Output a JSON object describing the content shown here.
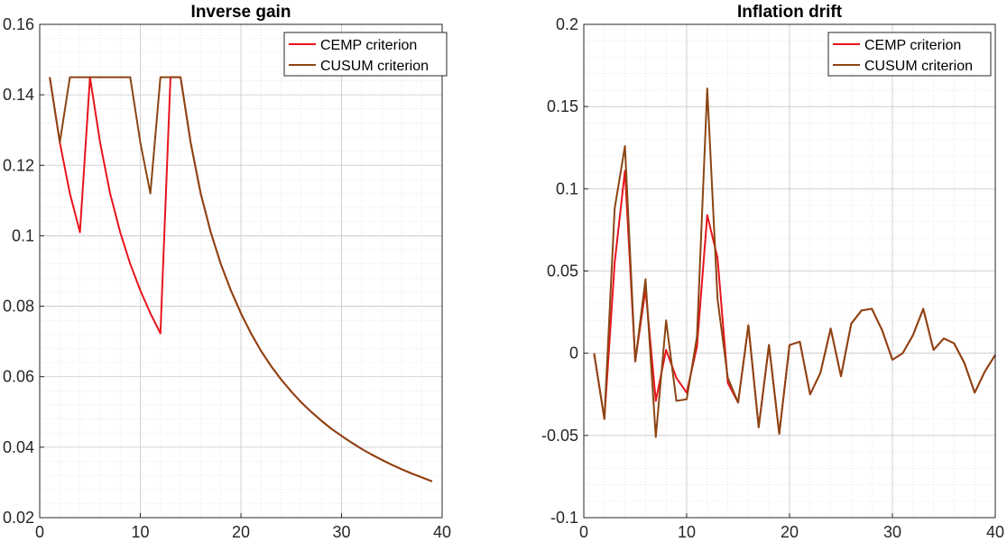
{
  "chart_data": [
    {
      "type": "line",
      "title": "Inverse gain",
      "xlabel": "",
      "ylabel": "",
      "xlim": [
        0,
        40
      ],
      "ylim": [
        0.02,
        0.16
      ],
      "xticks": [
        0,
        10,
        20,
        30,
        40
      ],
      "yticks": [
        0.02,
        0.04,
        0.06,
        0.08,
        0.1,
        0.12,
        0.14,
        0.16
      ],
      "xtick_labels": [
        "0",
        "10",
        "20",
        "30",
        "40"
      ],
      "ytick_labels": [
        "0.02",
        "0.04",
        "0.06",
        "0.08",
        "0.1",
        "0.12",
        "0.14",
        "0.16"
      ],
      "grid": true,
      "minor_grid": true,
      "legend_position": "top-right",
      "series": [
        {
          "name": "CEMP criterion",
          "color": "#e8141c",
          "x": [
            1,
            2,
            3,
            4,
            5,
            6,
            7,
            8,
            9,
            10,
            11,
            12,
            13,
            14,
            15,
            16,
            17,
            18,
            19,
            20,
            21,
            22,
            23,
            24,
            25,
            26,
            27,
            28,
            29,
            30,
            31,
            32,
            33,
            34,
            35,
            36,
            37,
            38,
            39
          ],
          "values": [
            0.145,
            0.1265,
            0.112,
            0.101,
            0.145,
            0.1265,
            0.112,
            0.101,
            0.092,
            0.0845,
            0.078,
            0.0723,
            0.145,
            0.145,
            0.1265,
            0.112,
            0.101,
            0.092,
            0.0845,
            0.078,
            0.0723,
            0.0673,
            0.063,
            0.0592,
            0.0558,
            0.0527,
            0.05,
            0.0475,
            0.0452,
            0.0432,
            0.0413,
            0.0395,
            0.0379,
            0.0364,
            0.035,
            0.0337,
            0.0325,
            0.0314,
            0.0303
          ]
        },
        {
          "name": "CUSUM criterion",
          "color": "#8b4513",
          "x": [
            1,
            2,
            3,
            4,
            5,
            6,
            7,
            8,
            9,
            10,
            11,
            12,
            13,
            14,
            15,
            16,
            17,
            18,
            19,
            20,
            21,
            22,
            23,
            24,
            25,
            26,
            27,
            28,
            29,
            30,
            31,
            32,
            33,
            34,
            35,
            36,
            37,
            38,
            39
          ],
          "values": [
            0.145,
            0.1265,
            0.145,
            0.145,
            0.145,
            0.145,
            0.145,
            0.145,
            0.145,
            0.1265,
            0.112,
            0.145,
            0.145,
            0.145,
            0.1265,
            0.112,
            0.101,
            0.092,
            0.0845,
            0.078,
            0.0723,
            0.0673,
            0.063,
            0.0592,
            0.0558,
            0.0527,
            0.05,
            0.0475,
            0.0452,
            0.0432,
            0.0413,
            0.0395,
            0.0379,
            0.0364,
            0.035,
            0.0337,
            0.0325,
            0.0314,
            0.0303
          ]
        }
      ]
    },
    {
      "type": "line",
      "title": "Inflation drift",
      "xlabel": "",
      "ylabel": "",
      "xlim": [
        0,
        40
      ],
      "ylim": [
        -0.1,
        0.2
      ],
      "xticks": [
        0,
        10,
        20,
        30,
        40
      ],
      "yticks": [
        -0.1,
        -0.05,
        0,
        0.05,
        0.1,
        0.15,
        0.2
      ],
      "xtick_labels": [
        "0",
        "10",
        "20",
        "30",
        "40"
      ],
      "ytick_labels": [
        "-0.1",
        "-0.05",
        "0",
        "0.05",
        "0.1",
        "0.15",
        "0.2"
      ],
      "grid": true,
      "minor_grid": true,
      "legend_position": "top-right",
      "series": [
        {
          "name": "CEMP criterion",
          "color": "#e8141c",
          "x": [
            1,
            2,
            3,
            4,
            5,
            6,
            7,
            8,
            9,
            10,
            11,
            12,
            13,
            14,
            15,
            16,
            17,
            18,
            19,
            20,
            21,
            22,
            23,
            24,
            25,
            26,
            27,
            28,
            29,
            30,
            31,
            32,
            33,
            34,
            35,
            36,
            37,
            38,
            39,
            40
          ],
          "values": [
            0,
            -0.04,
            0.055,
            0.111,
            -0.005,
            0.039,
            -0.029,
            0.002,
            -0.015,
            -0.024,
            0.004,
            0.084,
            0.058,
            -0.018,
            -0.03,
            0.017,
            -0.045,
            0.005,
            -0.049,
            0.005,
            0.007,
            -0.025,
            -0.012,
            0.015,
            -0.014,
            0.018,
            0.026,
            0.027,
            0.014,
            -0.004,
            0,
            0.011,
            0.027,
            0.002,
            0.009,
            0.006,
            -0.006,
            -0.024,
            -0.011,
            -0.001
          ]
        },
        {
          "name": "CUSUM criterion",
          "color": "#8b4513",
          "x": [
            1,
            2,
            3,
            4,
            5,
            6,
            7,
            8,
            9,
            10,
            11,
            12,
            13,
            14,
            15,
            16,
            17,
            18,
            19,
            20,
            21,
            22,
            23,
            24,
            25,
            26,
            27,
            28,
            29,
            30,
            31,
            32,
            33,
            34,
            35,
            36,
            37,
            38,
            39,
            40
          ],
          "values": [
            0,
            -0.04,
            0.088,
            0.126,
            -0.005,
            0.045,
            -0.051,
            0.02,
            -0.029,
            -0.028,
            0.01,
            0.161,
            0.033,
            -0.015,
            -0.03,
            0.017,
            -0.045,
            0.005,
            -0.049,
            0.005,
            0.007,
            -0.025,
            -0.012,
            0.015,
            -0.014,
            0.018,
            0.026,
            0.027,
            0.014,
            -0.004,
            0,
            0.011,
            0.027,
            0.002,
            0.009,
            0.006,
            -0.006,
            -0.024,
            -0.011,
            -0.001
          ]
        }
      ]
    }
  ]
}
